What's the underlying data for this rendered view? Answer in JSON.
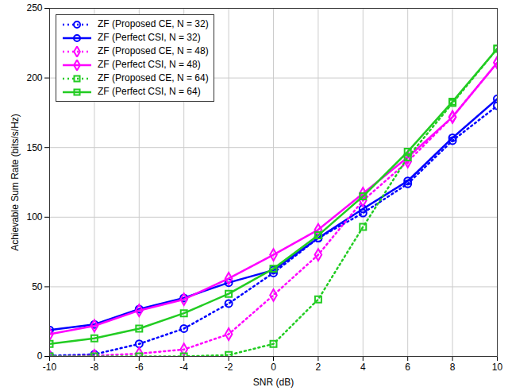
{
  "chart_data": {
    "type": "line",
    "xlabel": "SNR (dB)",
    "ylabel": "Achievable Sum Rate (bits/s/Hz)",
    "x": [
      -10,
      -8,
      -6,
      -4,
      -2,
      0,
      2,
      4,
      6,
      8,
      10
    ],
    "xlim": [
      -10,
      10
    ],
    "xticks": [
      -10,
      -8,
      -6,
      -4,
      -2,
      0,
      2,
      4,
      6,
      8,
      10
    ],
    "ylim": [
      0,
      250
    ],
    "yticks": [
      0,
      50,
      100,
      150,
      200,
      250
    ],
    "grid": true,
    "legend": "upper left",
    "series": [
      {
        "name": "ZF (Proposed CE, N = 32)",
        "color": "#0000ff",
        "marker": "circle",
        "line_style": "dotted",
        "values": [
          0.5,
          1.5,
          9,
          20,
          38,
          60,
          85,
          103,
          124,
          155,
          180
        ]
      },
      {
        "name": "ZF (Perfect CSI, N = 32)",
        "color": "#0000ff",
        "marker": "circle",
        "line_style": "solid",
        "values": [
          19,
          23,
          34,
          42,
          53,
          62,
          85,
          106,
          126,
          157,
          185
        ]
      },
      {
        "name": "ZF (Proposed CE, N = 48)",
        "color": "#ff00ff",
        "marker": "diamond",
        "line_style": "dotted",
        "values": [
          0,
          0.5,
          2,
          5,
          16,
          44,
          73,
          112,
          140,
          172,
          211
        ]
      },
      {
        "name": "ZF (Perfect CSI, N = 48)",
        "color": "#ff00ff",
        "marker": "diamond",
        "line_style": "solid",
        "values": [
          16,
          22,
          33,
          41,
          56,
          73,
          91,
          117,
          143,
          172,
          211
        ]
      },
      {
        "name": "ZF (Proposed CE, N = 64)",
        "color": "#22cc22",
        "marker": "square",
        "line_style": "dotted",
        "values": [
          0,
          0,
          0,
          0,
          1,
          9,
          41,
          93,
          143,
          182,
          221
        ]
      },
      {
        "name": "ZF (Perfect CSI, N = 64)",
        "color": "#22cc22",
        "marker": "square",
        "line_style": "solid",
        "values": [
          9,
          13,
          20,
          31,
          45,
          63,
          87,
          115,
          147,
          183,
          221
        ]
      }
    ]
  }
}
